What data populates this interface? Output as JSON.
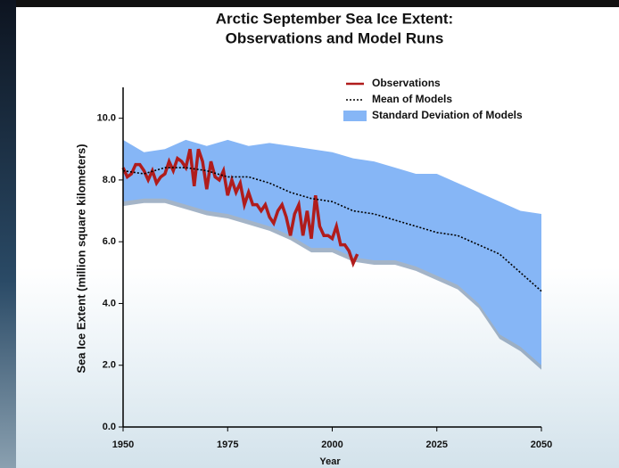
{
  "chart_data": {
    "type": "line",
    "title": [
      "Arctic September Sea Ice Extent:",
      "Observations and Model Runs"
    ],
    "x_label": "Year",
    "y_label": "Sea Ice Extent (million square kilometers)",
    "xlim": [
      1950,
      2050
    ],
    "ylim": [
      0,
      11
    ],
    "xticks": [
      1950,
      1975,
      2000,
      2025,
      2050
    ],
    "yticks": [
      {
        "value": 0,
        "label": "0.0"
      },
      {
        "value": 2,
        "label": "2.0"
      },
      {
        "value": 4,
        "label": "4.0"
      },
      {
        "value": 6,
        "label": "6.0"
      },
      {
        "value": 8,
        "label": "8.0"
      },
      {
        "value": 10,
        "label": "10.0"
      }
    ],
    "legend": "top-right",
    "series": [
      {
        "name": "Observations",
        "color": "#b01c1c",
        "x": [
          1950,
          1951,
          1952,
          1953,
          1954,
          1955,
          1956,
          1957,
          1958,
          1959,
          1960,
          1961,
          1962,
          1963,
          1964,
          1965,
          1966,
          1967,
          1968,
          1969,
          1970,
          1971,
          1972,
          1973,
          1974,
          1975,
          1976,
          1977,
          1978,
          1979,
          1980,
          1981,
          1982,
          1983,
          1984,
          1985,
          1986,
          1987,
          1988,
          1989,
          1990,
          1991,
          1992,
          1993,
          1994,
          1995,
          1996,
          1997,
          1998,
          1999,
          2000,
          2001,
          2002,
          2003,
          2004,
          2005,
          2006
        ],
        "values": [
          8.4,
          8.1,
          8.2,
          8.5,
          8.5,
          8.3,
          8.0,
          8.3,
          7.9,
          8.1,
          8.2,
          8.6,
          8.3,
          8.7,
          8.6,
          8.4,
          9.0,
          7.8,
          9.0,
          8.6,
          7.7,
          8.6,
          8.1,
          8.0,
          8.3,
          7.5,
          8.0,
          7.6,
          7.9,
          7.2,
          7.6,
          7.2,
          7.2,
          7.0,
          7.2,
          6.8,
          6.6,
          7.0,
          7.2,
          6.8,
          6.2,
          6.9,
          7.2,
          6.2,
          7.0,
          6.1,
          7.5,
          6.5,
          6.2,
          6.2,
          6.1,
          6.5,
          5.9,
          5.9,
          5.7,
          5.3,
          5.6
        ]
      },
      {
        "name": "Mean of Models",
        "color": "#000000",
        "style": "dotted",
        "x": [
          1950,
          1955,
          1960,
          1965,
          1970,
          1975,
          1980,
          1985,
          1990,
          1995,
          2000,
          2005,
          2010,
          2015,
          2020,
          2025,
          2030,
          2035,
          2040,
          2045,
          2050
        ],
        "values": [
          8.3,
          8.2,
          8.4,
          8.4,
          8.3,
          8.1,
          8.1,
          7.9,
          7.6,
          7.4,
          7.3,
          7.0,
          6.9,
          6.7,
          6.5,
          6.3,
          6.2,
          5.9,
          5.6,
          5.0,
          4.4
        ]
      },
      {
        "name": "Standard Deviation of Models",
        "color": "#86b6f6",
        "style": "band",
        "x": [
          1950,
          1955,
          1960,
          1965,
          1970,
          1975,
          1980,
          1985,
          1990,
          1995,
          2000,
          2005,
          2010,
          2015,
          2020,
          2025,
          2030,
          2035,
          2040,
          2045,
          2050
        ],
        "upper": [
          9.3,
          8.9,
          9.0,
          9.3,
          9.1,
          9.3,
          9.1,
          9.2,
          9.1,
          9.0,
          8.9,
          8.7,
          8.6,
          8.4,
          8.2,
          8.2,
          7.9,
          7.6,
          7.3,
          7.0,
          6.9
        ],
        "lower": [
          7.3,
          7.4,
          7.4,
          7.2,
          7.0,
          6.9,
          6.7,
          6.5,
          6.2,
          5.8,
          5.8,
          5.5,
          5.4,
          5.4,
          5.2,
          4.9,
          4.6,
          4.0,
          3.0,
          2.6,
          2.0
        ]
      }
    ]
  }
}
